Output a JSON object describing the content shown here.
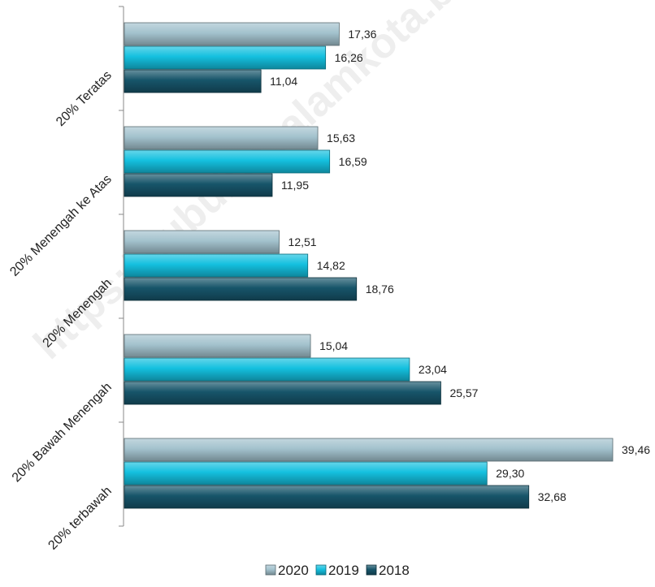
{
  "watermark": "https://subulussalamkota.bps.go.id",
  "colors": {
    "2020": "#a3c2cd",
    "2019": "#14c0df",
    "2018": "#17556a"
  },
  "chart_data": {
    "type": "bar",
    "orientation": "horizontal",
    "categories": [
      "20% Teratas",
      "20% Menengah ke Atas",
      "20% Menengah",
      "20% Bawah Menengah",
      "20% terbawah"
    ],
    "series": [
      {
        "name": "2020",
        "values": [
          17.36,
          15.63,
          12.51,
          15.04,
          39.46
        ],
        "labels": [
          "17,36",
          "15,63",
          "12,51",
          "15,04",
          "39,46"
        ]
      },
      {
        "name": "2019",
        "values": [
          16.26,
          16.59,
          14.82,
          23.04,
          29.3
        ],
        "labels": [
          "16,26",
          "16,59",
          "14,82",
          "23,04",
          "29,30"
        ]
      },
      {
        "name": "2018",
        "values": [
          11.04,
          11.95,
          18.76,
          25.57,
          32.68
        ],
        "labels": [
          "11,04",
          "11,95",
          "18,76",
          "25,57",
          "32,68"
        ]
      }
    ],
    "xlim": [
      0,
      39.46
    ],
    "legend_position": "bottom",
    "grid": false
  }
}
